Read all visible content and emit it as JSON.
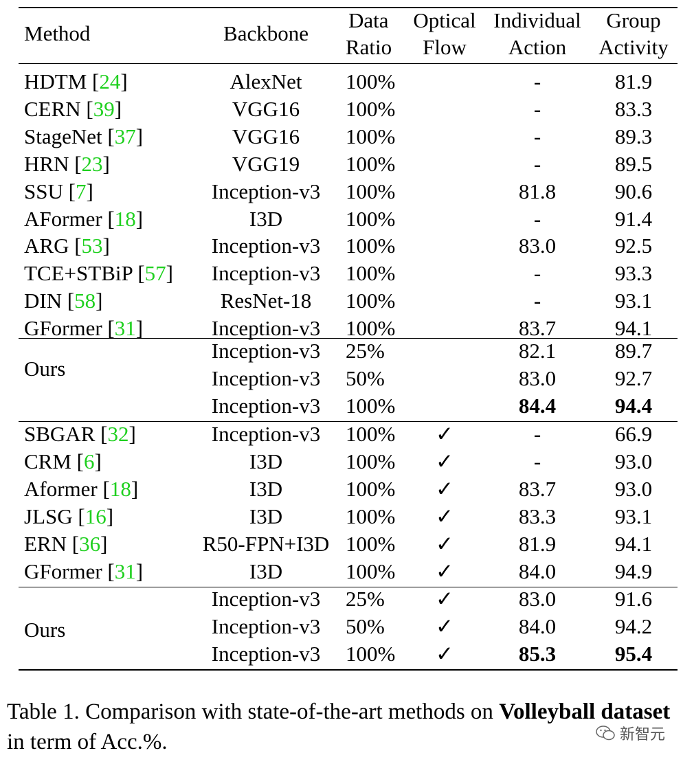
{
  "headers": {
    "method": "Method",
    "backbone": "Backbone",
    "data1": "Data",
    "data2": "Ratio",
    "flow1": "Optical",
    "flow2": "Flow",
    "ind1": "Individual",
    "ind2": "Action",
    "grp1": "Group",
    "grp2": "Activity"
  },
  "section1": [
    {
      "name": "HDTM",
      "ref": "24",
      "backbone": "AlexNet",
      "ratio": "100%",
      "flow": "",
      "ind": "-",
      "grp": "81.9"
    },
    {
      "name": "CERN",
      "ref": "39",
      "backbone": "VGG16",
      "ratio": "100%",
      "flow": "",
      "ind": "-",
      "grp": "83.3"
    },
    {
      "name": "StageNet",
      "ref": "37",
      "backbone": "VGG16",
      "ratio": "100%",
      "flow": "",
      "ind": "-",
      "grp": "89.3"
    },
    {
      "name": "HRN",
      "ref": "23",
      "backbone": "VGG19",
      "ratio": "100%",
      "flow": "",
      "ind": "-",
      "grp": "89.5"
    },
    {
      "name": "SSU",
      "ref": "7",
      "backbone": "Inception-v3",
      "ratio": "100%",
      "flow": "",
      "ind": "81.8",
      "grp": "90.6"
    },
    {
      "name": "AFormer",
      "ref": "18",
      "backbone": "I3D",
      "ratio": "100%",
      "flow": "",
      "ind": "-",
      "grp": "91.4"
    },
    {
      "name": "ARG",
      "ref": "53",
      "backbone": "Inception-v3",
      "ratio": "100%",
      "flow": "",
      "ind": "83.0",
      "grp": "92.5"
    },
    {
      "name": "TCE+STBiP",
      "ref": "57",
      "backbone": "Inception-v3",
      "ratio": "100%",
      "flow": "",
      "ind": "-",
      "grp": "93.3"
    },
    {
      "name": "DIN",
      "ref": "58",
      "backbone": "ResNet-18",
      "ratio": "100%",
      "flow": "",
      "ind": "-",
      "grp": "93.1"
    },
    {
      "name": "GFormer",
      "ref": "31",
      "backbone": "Inception-v3",
      "ratio": "100%",
      "flow": "",
      "ind": "83.7",
      "grp": "94.1"
    }
  ],
  "ours1": {
    "label": "Ours",
    "rows": [
      {
        "backbone": "Inception-v3",
        "ratio": "25%",
        "flow": "",
        "ind": "82.1",
        "grp": "89.7",
        "bold": false
      },
      {
        "backbone": "Inception-v3",
        "ratio": "50%",
        "flow": "",
        "ind": "83.0",
        "grp": "92.7",
        "bold": false
      },
      {
        "backbone": "Inception-v3",
        "ratio": "100%",
        "flow": "",
        "ind": "84.4",
        "grp": "94.4",
        "bold": true
      }
    ]
  },
  "section2": [
    {
      "name": "SBGAR",
      "ref": "32",
      "backbone": "Inception-v3",
      "ratio": "100%",
      "flow": "✓",
      "ind": "-",
      "grp": "66.9"
    },
    {
      "name": "CRM",
      "ref": "6",
      "backbone": "I3D",
      "ratio": "100%",
      "flow": "✓",
      "ind": "-",
      "grp": "93.0"
    },
    {
      "name": "Aformer",
      "ref": "18",
      "backbone": "I3D",
      "ratio": "100%",
      "flow": "✓",
      "ind": "83.7",
      "grp": "93.0"
    },
    {
      "name": "JLSG",
      "ref": "16",
      "backbone": "I3D",
      "ratio": "100%",
      "flow": "✓",
      "ind": "83.3",
      "grp": "93.1"
    },
    {
      "name": "ERN",
      "ref": "36",
      "backbone": "R50-FPN+I3D",
      "ratio": "100%",
      "flow": "✓",
      "ind": "81.9",
      "grp": "94.1"
    },
    {
      "name": "GFormer",
      "ref": "31",
      "backbone": "I3D",
      "ratio": "100%",
      "flow": "✓",
      "ind": "84.0",
      "grp": "94.9"
    }
  ],
  "ours2": {
    "label": "Ours",
    "rows": [
      {
        "backbone": "Inception-v3",
        "ratio": "25%",
        "flow": "✓",
        "ind": "83.0",
        "grp": "91.6",
        "bold": false
      },
      {
        "backbone": "Inception-v3",
        "ratio": "50%",
        "flow": "✓",
        "ind": "84.0",
        "grp": "94.2",
        "bold": false
      },
      {
        "backbone": "Inception-v3",
        "ratio": "100%",
        "flow": "✓",
        "ind": "85.3",
        "grp": "95.4",
        "bold": true
      }
    ]
  },
  "caption": {
    "prefix": "Table 1. Comparison with state-of-the-art methods on ",
    "bold": "Volleyball dataset",
    "suffix": " in term of Acc.%."
  },
  "watermark": "新智元"
}
